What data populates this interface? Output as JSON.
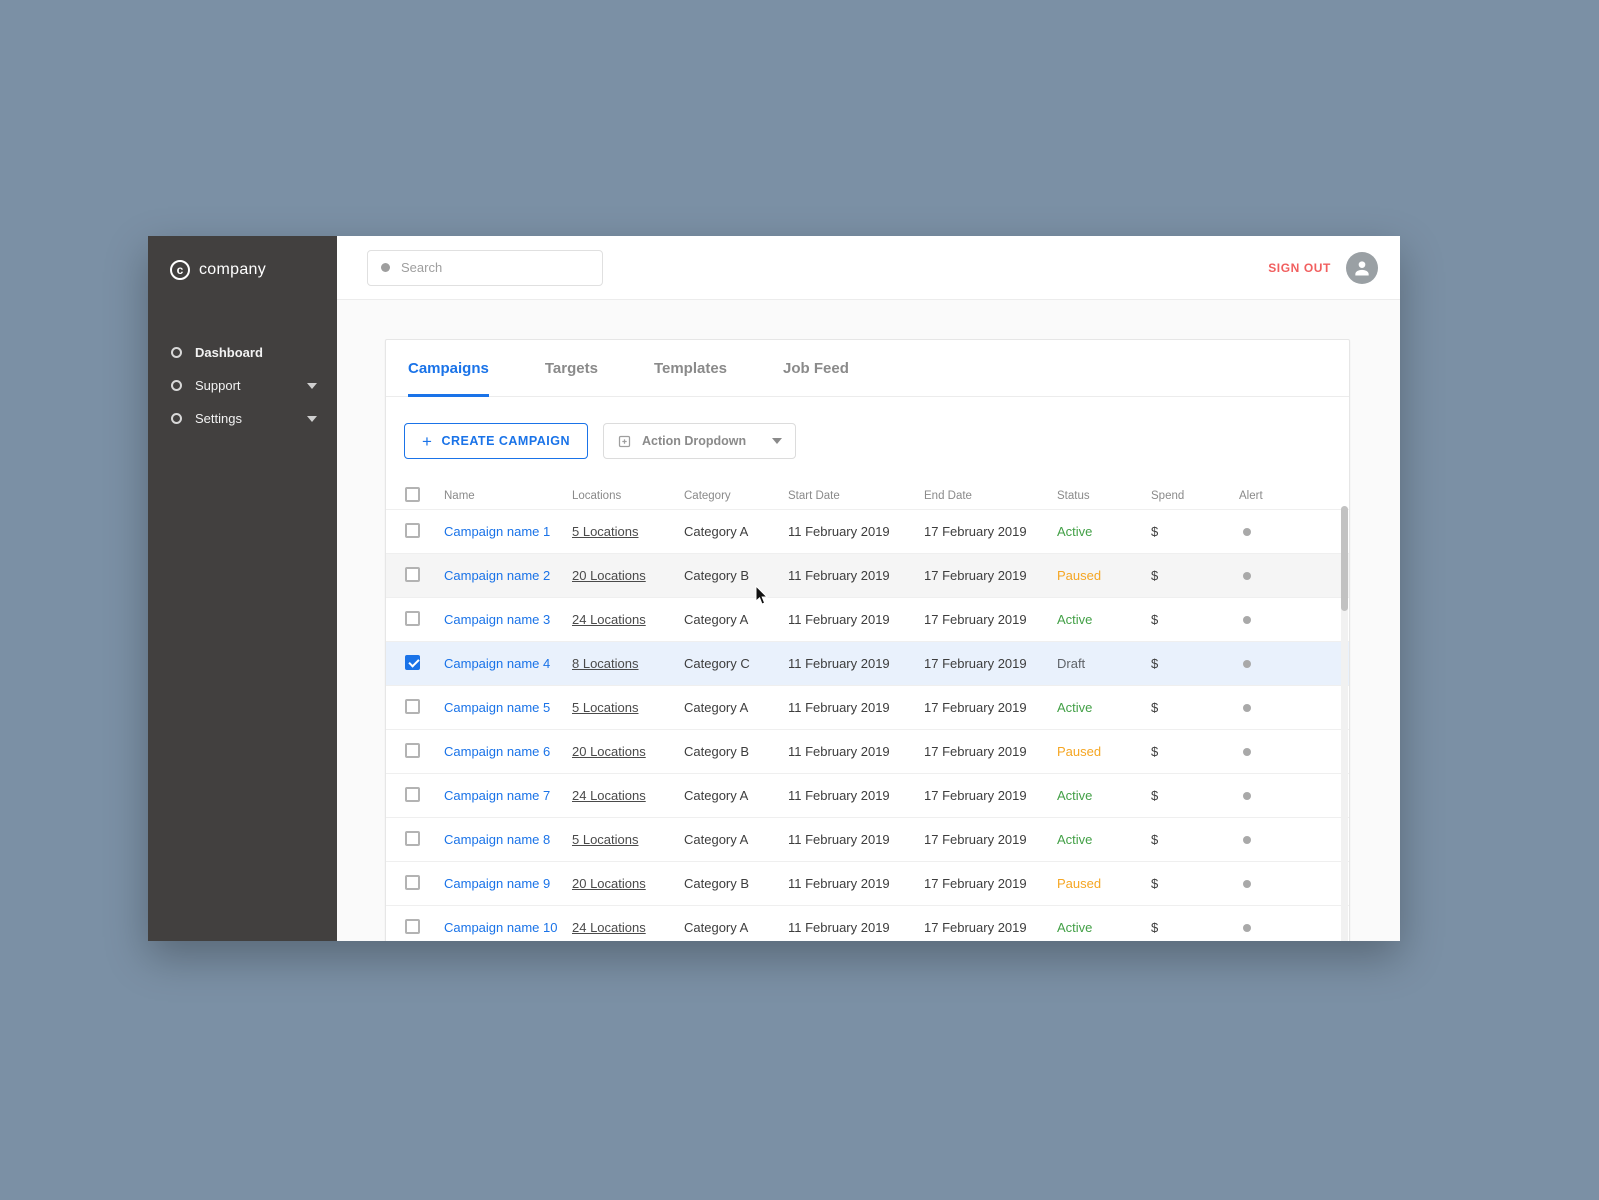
{
  "brand": {
    "logo_letter": "c",
    "name": "company"
  },
  "sidebar": {
    "items": [
      {
        "label": "Dashboard"
      },
      {
        "label": "Support"
      },
      {
        "label": "Settings"
      }
    ]
  },
  "topbar": {
    "search_placeholder": "Search",
    "sign_out_label": "SIGN OUT"
  },
  "tabs": [
    {
      "label": "Campaigns",
      "active": true
    },
    {
      "label": "Targets",
      "active": false
    },
    {
      "label": "Templates",
      "active": false
    },
    {
      "label": "Job Feed",
      "active": false
    }
  ],
  "toolbar": {
    "create_label": "CREATE CAMPAIGN",
    "action_dropdown_label": "Action Dropdown"
  },
  "table": {
    "headers": [
      "Name",
      "Locations",
      "Category",
      "Start Date",
      "End Date",
      "Status",
      "Spend",
      "Alert"
    ],
    "rows": [
      {
        "name": "Campaign name 1",
        "locations": "5 Locations",
        "category": "Category A",
        "start_date": "11 February 2019",
        "end_date": "17 February 2019",
        "status": "Active",
        "spend": "$",
        "checked": false,
        "state": ""
      },
      {
        "name": "Campaign name 2",
        "locations": "20 Locations",
        "category": "Category B",
        "start_date": "11 February 2019",
        "end_date": "17 February 2019",
        "status": "Paused",
        "spend": "$",
        "checked": false,
        "state": "hover"
      },
      {
        "name": "Campaign name 3",
        "locations": "24 Locations",
        "category": "Category A",
        "start_date": "11 February 2019",
        "end_date": "17 February 2019",
        "status": "Active",
        "spend": "$",
        "checked": false,
        "state": ""
      },
      {
        "name": "Campaign name 4",
        "locations": "8 Locations",
        "category": "Category C",
        "start_date": "11 February 2019",
        "end_date": "17 February 2019",
        "status": "Draft",
        "spend": "$",
        "checked": true,
        "state": "selected"
      },
      {
        "name": "Campaign name 5",
        "locations": "5 Locations",
        "category": "Category A",
        "start_date": "11 February 2019",
        "end_date": "17 February 2019",
        "status": "Active",
        "spend": "$",
        "checked": false,
        "state": ""
      },
      {
        "name": "Campaign name 6",
        "locations": "20 Locations",
        "category": "Category B",
        "start_date": "11 February 2019",
        "end_date": "17 February 2019",
        "status": "Paused",
        "spend": "$",
        "checked": false,
        "state": ""
      },
      {
        "name": "Campaign name 7",
        "locations": "24 Locations",
        "category": "Category A",
        "start_date": "11 February 2019",
        "end_date": "17 February 2019",
        "status": "Active",
        "spend": "$",
        "checked": false,
        "state": ""
      },
      {
        "name": "Campaign name 8",
        "locations": "5 Locations",
        "category": "Category A",
        "start_date": "11 February 2019",
        "end_date": "17 February 2019",
        "status": "Active",
        "spend": "$",
        "checked": false,
        "state": ""
      },
      {
        "name": "Campaign name 9",
        "locations": "20 Locations",
        "category": "Category B",
        "start_date": "11 February 2019",
        "end_date": "17 February 2019",
        "status": "Paused",
        "spend": "$",
        "checked": false,
        "state": ""
      },
      {
        "name": "Campaign name 10",
        "locations": "24 Locations",
        "category": "Category A",
        "start_date": "11 February 2019",
        "end_date": "17 February 2019",
        "status": "Active",
        "spend": "$",
        "checked": false,
        "state": ""
      }
    ]
  },
  "colors": {
    "accent_blue": "#1a73e8",
    "sign_out_red": "#f15f5f",
    "sidebar_bg": "#42403f",
    "page_bg": "#7b90a5",
    "status": {
      "Active": "#43a047",
      "Paused": "#f5a623",
      "Draft": "#5f6368"
    }
  }
}
